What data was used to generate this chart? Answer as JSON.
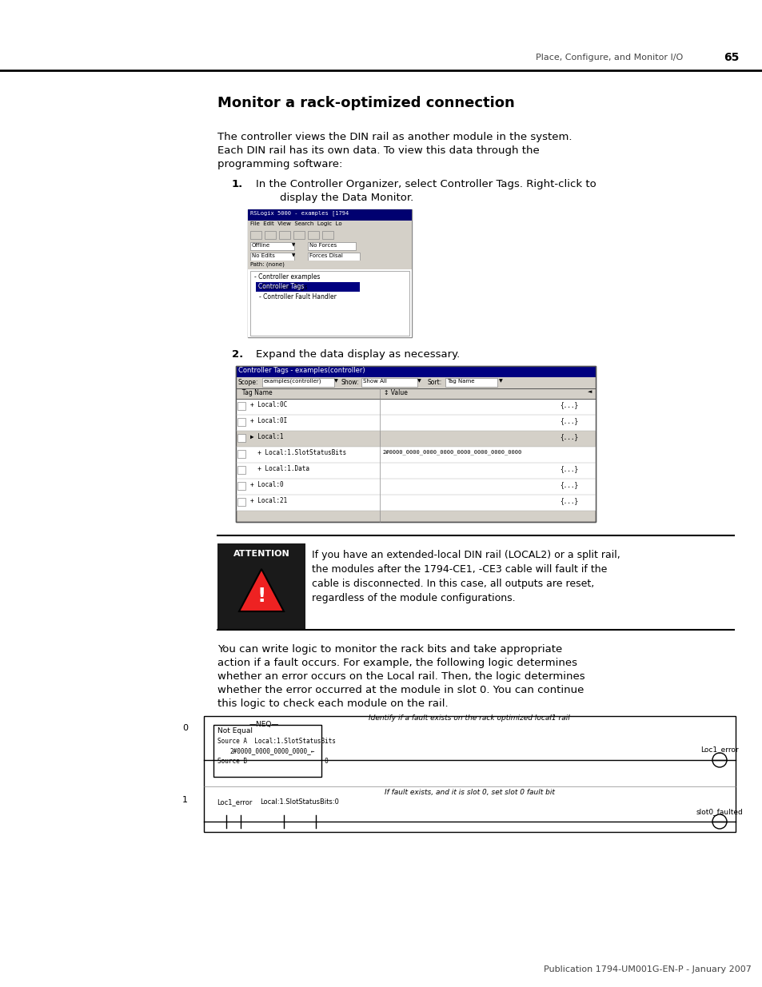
{
  "page_title": "Place, Configure, and Monitor I/O",
  "page_number": "65",
  "section_title": "Monitor a rack-optimized connection",
  "intro_line1": "The controller views the DIN rail as another module in the system.",
  "intro_line2": "Each DIN rail has its own data. To view this data through the",
  "intro_line3": "programming software:",
  "step1_label": "1.",
  "step1_line1": "In the Controller Organizer, select Controller Tags. Right-click to",
  "step1_line2": "display the Data Monitor.",
  "step2_label": "2.",
  "step2_text": "Expand the data display as necessary.",
  "attention_title": "ATTENTION",
  "attention_line1": "If you have an extended-local DIN rail (LOCAL2) or a split rail,",
  "attention_line2": "the modules after the 1794-CE1, -CE3 cable will fault if the",
  "attention_line3": "cable is disconnected. In this case, all outputs are reset,",
  "attention_line4": "regardless of the module configurations.",
  "body_line1": "You can write logic to monitor the rack bits and take appropriate",
  "body_line2": "action if a fault occurs. For example, the following logic determines",
  "body_line3": "whether an error occurs on the Local rail. Then, the logic determines",
  "body_line4": "whether the error occurred at the module in slot 0. You can continue",
  "body_line5": "this logic to check each module on the rail.",
  "footer_text": "Publication 1794-UM001G-EN-P - January 2007",
  "diag_label": "Identify if a fault exists on the rack optimized local1 rail",
  "diag2_label": "If fault exists, and it is slot 0, set slot 0 fault bit",
  "bg_color": "#ffffff"
}
